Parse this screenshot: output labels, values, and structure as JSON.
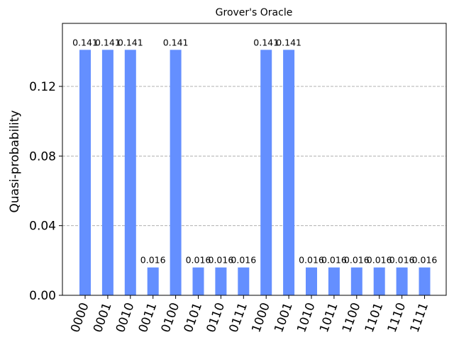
{
  "colors": {
    "bar": "#648fff",
    "grid": "#b0b0b0"
  },
  "chart_data": {
    "type": "bar",
    "title": "Grover's Oracle",
    "xlabel": "",
    "ylabel": "Quasi-probability",
    "ylim": [
      0,
      0.1562
    ],
    "yticks": [
      0.0,
      0.04,
      0.08,
      0.12
    ],
    "ytick_labels": [
      "0.00",
      "0.04",
      "0.08",
      "0.12"
    ],
    "grid": "y-dashed",
    "categories": [
      "0000",
      "0001",
      "0010",
      "0011",
      "0100",
      "0101",
      "0110",
      "0111",
      "1000",
      "1001",
      "1010",
      "1011",
      "1100",
      "1101",
      "1110",
      "1111"
    ],
    "values": [
      0.141,
      0.141,
      0.141,
      0.016,
      0.141,
      0.016,
      0.016,
      0.016,
      0.141,
      0.141,
      0.016,
      0.016,
      0.016,
      0.016,
      0.016,
      0.016
    ],
    "data_labels": [
      "0.141",
      "0.141",
      "0.141",
      "0.016",
      "0.141",
      "0.016",
      "0.016",
      "0.016",
      "0.141",
      "0.141",
      "0.016",
      "0.016",
      "0.016",
      "0.016",
      "0.016",
      "0.016"
    ]
  }
}
